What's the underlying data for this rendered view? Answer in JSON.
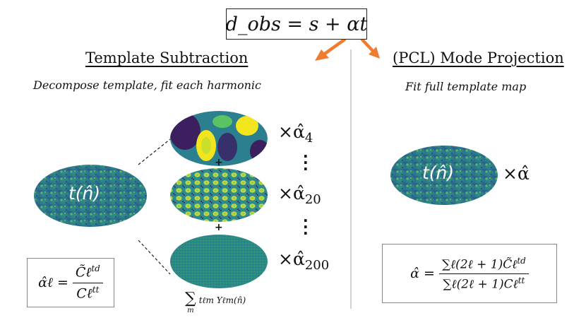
{
  "top_equation": "d_obs = s + αt",
  "left": {
    "heading": "Template Subtraction",
    "subtitle": "Decompose template, fit each harmonic",
    "template_map_label": "t(n̂)",
    "plus_sign": "+",
    "multipliers": [
      {
        "base": "×α̂",
        "sub": "4"
      },
      {
        "base": "×α̂",
        "sub": "20"
      },
      {
        "base": "×α̂",
        "sub": "200"
      }
    ],
    "sum_caption": {
      "sigma": "∑",
      "index": "m",
      "terms": "tℓm Yℓm(n̂)"
    },
    "formula": {
      "lhs": "α̂ℓ =",
      "numerator": "C̃ℓ",
      "numerator_sup": "td",
      "denominator": "Cℓ",
      "denominator_sup": "tt"
    }
  },
  "right": {
    "heading": "(PCL) Mode Projection",
    "subtitle": "Fit full template map",
    "template_map_label": "t(n̂)",
    "multiplier": "×α̂",
    "formula": {
      "lhs": "α̂ =",
      "numerator": "∑ℓ(2ℓ + 1)C̃ℓ",
      "numerator_sup": "td",
      "denominator": "∑ℓ(2ℓ + 1)Cℓ",
      "denominator_sup": "tt"
    }
  },
  "colors": {
    "arrow": "#ee7d31",
    "divider": "#bbbbbb",
    "viridis_dark": "#3b1f5e",
    "viridis_mid": "#1f8a8a",
    "viridis_light": "#f2e51d"
  }
}
